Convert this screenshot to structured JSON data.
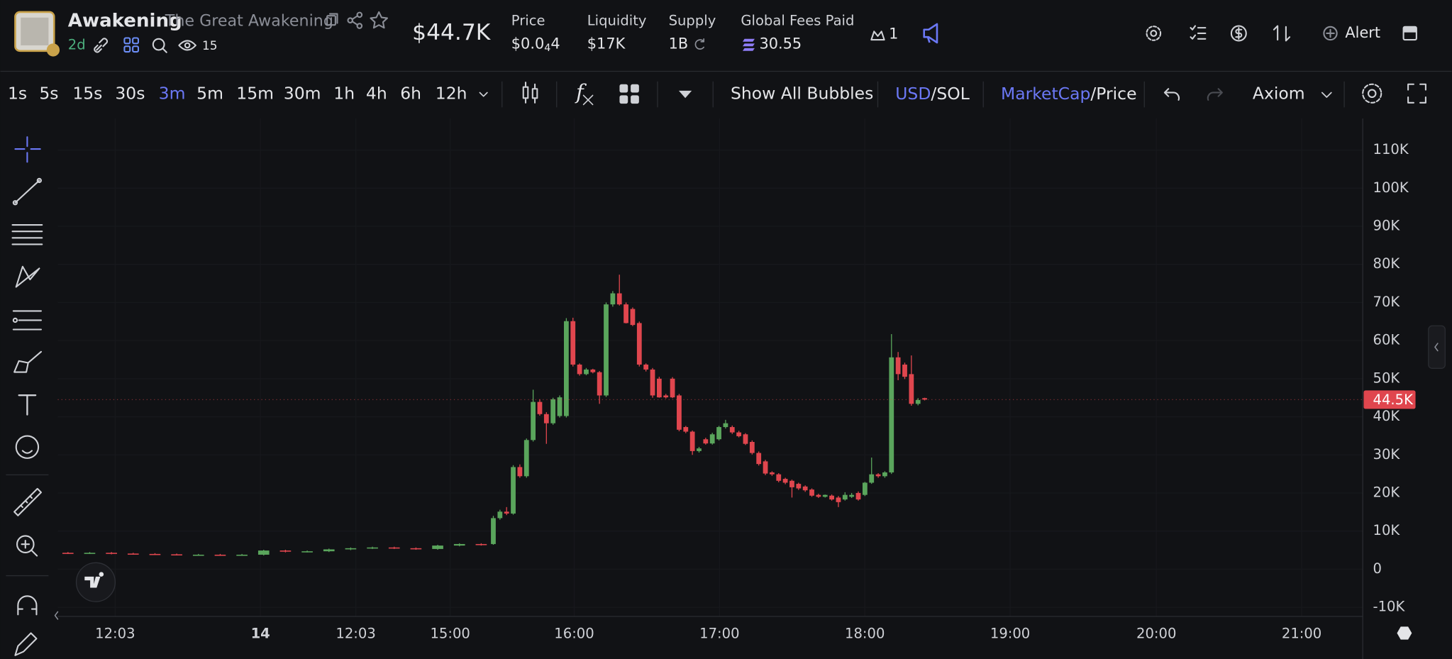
{
  "header": {
    "token_name": "Awakening",
    "token_full_name": "The Great Awakening",
    "age": "2d",
    "watchers": "15",
    "market_cap": "$44.7K",
    "price": {
      "label": "Price",
      "prefix": "$0.0",
      "zeros": "4",
      "digits": "4"
    },
    "liquidity": {
      "label": "Liquidity",
      "value": "$17K"
    },
    "supply": {
      "label": "Supply",
      "value": "1B"
    },
    "fees": {
      "label": "Global Fees Paid",
      "value": "30.55"
    },
    "crown_count": "1",
    "alert": "Alert"
  },
  "toolbar": {
    "intervals": [
      "1s",
      "5s",
      "15s",
      "30s",
      "3m",
      "5m",
      "15m",
      "30m",
      "1h",
      "4h",
      "6h",
      "12h"
    ],
    "active_interval": "3m",
    "bubbles": "Show All Bubbles",
    "currency": {
      "active": "USD",
      "rest": "/SOL"
    },
    "metric": {
      "active": "MarketCap",
      "rest": "/Price"
    },
    "chart_style": "Axiom"
  },
  "chart_data": {
    "type": "candlestick",
    "up_color": "#5aa55c",
    "down_color": "#e0464e",
    "grid": true,
    "ylim": [
      -12400,
      118300
    ],
    "yticks": [
      {
        "value": -10000,
        "label": "-10K"
      },
      0,
      {
        "value": 10000,
        "label": "10K"
      },
      {
        "value": 20000,
        "label": "20K"
      },
      {
        "value": 30000,
        "label": "30K"
      },
      {
        "value": 40000,
        "label": "40K"
      },
      {
        "value": 50000,
        "label": "50K"
      },
      {
        "value": 60000,
        "label": "60K"
      },
      {
        "value": 70000,
        "label": "70K"
      },
      {
        "value": 80000,
        "label": "80K"
      },
      {
        "value": 90000,
        "label": "90K"
      },
      {
        "value": 100000,
        "label": "100K"
      },
      {
        "value": 110000,
        "label": "110K"
      }
    ],
    "x_labels": [
      "12:03",
      "14",
      "12:03",
      "15:00",
      "16:00",
      "17:00",
      "18:00",
      "19:00",
      "20:00",
      "21:00"
    ],
    "last_price": {
      "value": 44500,
      "label": "44.5K"
    },
    "open": [
      4300,
      4200,
      4300,
      4100,
      4000,
      3900,
      3800,
      3800,
      3700,
      3800,
      4900,
      4600,
      4700,
      5200,
      5500,
      5700,
      5500,
      5300,
      6200,
      6600,
      6600,
      13400,
      15100,
      14600,
      26800,
      24400,
      33900,
      43900,
      40700,
      38300,
      40200,
      40200,
      65100,
      53700,
      51200,
      52400,
      51700,
      45600,
      69500,
      72400,
      69500,
      68300,
      64600,
      53700,
      52400,
      50000,
      45600,
      50000,
      45600,
      37300,
      36100,
      31000,
      34100,
      33000,
      34100,
      37300,
      37300,
      35900,
      35400,
      33400,
      30500,
      28300,
      25400,
      24900,
      23700,
      23200,
      22400,
      21700,
      20900,
      19500,
      19000,
      19300,
      18800,
      18300,
      19000,
      20000,
      19500,
      22700,
      24900,
      24400,
      25400,
      55600,
      53700,
      51200,
      43400,
      44900
    ],
    "high": [
      4500,
      4500,
      4500,
      4300,
      4200,
      4100,
      4000,
      4000,
      4000,
      5100,
      5100,
      4900,
      5400,
      5700,
      5900,
      5900,
      5700,
      6400,
      6800,
      6800,
      14000,
      15600,
      16300,
      27300,
      27500,
      34300,
      47100,
      44600,
      41200,
      45000,
      45600,
      65900,
      66000,
      54000,
      52800,
      52600,
      52000,
      70000,
      73000,
      77300,
      70000,
      68700,
      65000,
      54000,
      52800,
      50500,
      46000,
      50400,
      46000,
      37600,
      36400,
      32100,
      34500,
      35800,
      37600,
      39200,
      37700,
      36300,
      35700,
      33800,
      30900,
      28700,
      25700,
      25200,
      24000,
      23500,
      22700,
      22000,
      21200,
      19800,
      19600,
      19600,
      19200,
      20200,
      20000,
      20400,
      22900,
      29300,
      25200,
      25700,
      61700,
      57000,
      54200,
      56100,
      44900,
      45000
    ],
    "low": [
      4000,
      4000,
      3900,
      3800,
      3700,
      3600,
      3600,
      3500,
      3500,
      3600,
      4400,
      4400,
      4500,
      5000,
      5300,
      5300,
      5100,
      5100,
      6000,
      6200,
      6400,
      13000,
      14200,
      14300,
      24000,
      24000,
      33500,
      40300,
      32900,
      37900,
      39800,
      39800,
      53200,
      50800,
      50900,
      51400,
      43400,
      45200,
      68900,
      69200,
      64500,
      63800,
      53200,
      51900,
      45000,
      45000,
      44800,
      44900,
      36200,
      35700,
      30000,
      30600,
      32700,
      32700,
      33800,
      36900,
      35500,
      34600,
      32600,
      30100,
      27200,
      24700,
      24500,
      22800,
      22300,
      18800,
      20800,
      20300,
      19000,
      18700,
      18800,
      18000,
      16300,
      18000,
      18700,
      18000,
      19200,
      22400,
      24000,
      24000,
      25000,
      49600,
      49900,
      42900,
      43000,
      44300
    ],
    "close": [
      4200,
      4300,
      4100,
      4000,
      3900,
      3800,
      3800,
      3700,
      3800,
      4900,
      4600,
      4700,
      5200,
      5500,
      5700,
      5500,
      5300,
      6200,
      6600,
      6400,
      13400,
      15100,
      14600,
      26800,
      24400,
      33900,
      43900,
      40700,
      38300,
      44600,
      45100,
      65100,
      53700,
      51200,
      52400,
      51700,
      45600,
      69500,
      72400,
      69500,
      64600,
      64100,
      53700,
      52400,
      45600,
      45100,
      45100,
      45100,
      36600,
      36100,
      31000,
      31700,
      33000,
      35400,
      37300,
      38300,
      35900,
      34900,
      32900,
      30500,
      27600,
      25100,
      24900,
      23200,
      22700,
      21500,
      21200,
      20700,
      19300,
      19000,
      19500,
      18300,
      17600,
      19500,
      19500,
      18300,
      22700,
      24900,
      24400,
      25400,
      55600,
      51200,
      50500,
      43400,
      44400,
      44500
    ]
  }
}
